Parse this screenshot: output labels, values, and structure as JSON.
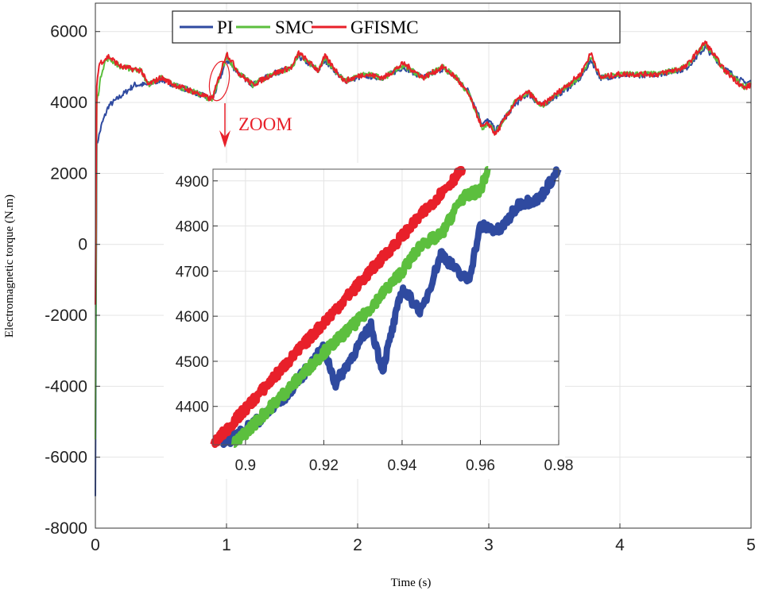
{
  "chart_data": [
    {
      "type": "line",
      "title": "",
      "xlabel": "Time (s)",
      "ylabel": "Electromagnetic torque (N.m)",
      "xlim": [
        0,
        5
      ],
      "ylim": [
        -8000,
        6800
      ],
      "xticks": [
        "0",
        "1",
        "2",
        "3",
        "4",
        "5"
      ],
      "yticks": [
        "6000",
        "4000",
        "2000",
        "0",
        "-2000",
        "-4000",
        "-6000",
        "-8000"
      ],
      "grid": true,
      "legend": {
        "position": "top-center",
        "entries": [
          "PI",
          "SMC",
          "GFISMC"
        ]
      },
      "annotation": "ZOOM",
      "series": [
        {
          "name": "PI",
          "color": "#2f4aa0",
          "points": [
            [
              0,
              -7100
            ],
            [
              0.01,
              2800
            ],
            [
              0.05,
              3400
            ],
            [
              0.1,
              3900
            ],
            [
              0.2,
              4200
            ],
            [
              0.3,
              4500
            ],
            [
              0.4,
              4500
            ],
            [
              0.5,
              4650
            ],
            [
              0.6,
              4500
            ],
            [
              0.75,
              4300
            ],
            [
              0.88,
              4100
            ],
            [
              0.9,
              4150
            ],
            [
              1.0,
              5200
            ],
            [
              1.1,
              4800
            ],
            [
              1.2,
              4500
            ],
            [
              1.35,
              4800
            ],
            [
              1.5,
              5000
            ],
            [
              1.55,
              5300
            ],
            [
              1.7,
              4900
            ],
            [
              1.75,
              5200
            ],
            [
              1.9,
              4600
            ],
            [
              2.05,
              4750
            ],
            [
              2.2,
              4700
            ],
            [
              2.35,
              5000
            ],
            [
              2.5,
              4700
            ],
            [
              2.65,
              4950
            ],
            [
              2.75,
              4700
            ],
            [
              2.85,
              4300
            ],
            [
              2.95,
              3400
            ],
            [
              3.0,
              3500
            ],
            [
              3.05,
              3200
            ],
            [
              3.2,
              3950
            ],
            [
              3.3,
              4250
            ],
            [
              3.4,
              3900
            ],
            [
              3.6,
              4400
            ],
            [
              3.7,
              4700
            ],
            [
              3.78,
              5200
            ],
            [
              3.85,
              4700
            ],
            [
              4.0,
              4750
            ],
            [
              4.3,
              4800
            ],
            [
              4.5,
              4950
            ],
            [
              4.65,
              5550
            ],
            [
              4.8,
              4950
            ],
            [
              4.95,
              4550
            ],
            [
              5,
              4600
            ]
          ]
        },
        {
          "name": "SMC",
          "color": "#5cbf3e",
          "points": [
            [
              0,
              -5500
            ],
            [
              0.01,
              4000
            ],
            [
              0.05,
              4900
            ],
            [
              0.08,
              5200
            ],
            [
              0.1,
              5250
            ],
            [
              0.2,
              5000
            ],
            [
              0.35,
              4900
            ],
            [
              0.4,
              4500
            ],
            [
              0.5,
              4700
            ],
            [
              0.6,
              4500
            ],
            [
              0.75,
              4300
            ],
            [
              0.88,
              4100
            ],
            [
              0.9,
              4150
            ],
            [
              1.0,
              5300
            ],
            [
              1.1,
              4800
            ],
            [
              1.2,
              4500
            ],
            [
              1.35,
              4800
            ],
            [
              1.5,
              5000
            ],
            [
              1.55,
              5350
            ],
            [
              1.7,
              4900
            ],
            [
              1.75,
              5250
            ],
            [
              1.9,
              4600
            ],
            [
              2.05,
              4800
            ],
            [
              2.2,
              4700
            ],
            [
              2.35,
              5050
            ],
            [
              2.5,
              4700
            ],
            [
              2.65,
              5000
            ],
            [
              2.75,
              4700
            ],
            [
              2.85,
              4250
            ],
            [
              2.95,
              3300
            ],
            [
              3.0,
              3400
            ],
            [
              3.05,
              3150
            ],
            [
              3.2,
              4000
            ],
            [
              3.3,
              4300
            ],
            [
              3.4,
              3900
            ],
            [
              3.6,
              4450
            ],
            [
              3.7,
              4750
            ],
            [
              3.78,
              5300
            ],
            [
              3.85,
              4700
            ],
            [
              4.0,
              4800
            ],
            [
              4.3,
              4800
            ],
            [
              4.5,
              5000
            ],
            [
              4.65,
              5650
            ],
            [
              4.8,
              4900
            ],
            [
              4.95,
              4450
            ],
            [
              5,
              4500
            ]
          ]
        },
        {
          "name": "GFISMC",
          "color": "#e8202a",
          "points": [
            [
              0,
              -1700
            ],
            [
              0.01,
              4500
            ],
            [
              0.03,
              5100
            ],
            [
              0.1,
              5300
            ],
            [
              0.2,
              5000
            ],
            [
              0.35,
              4900
            ],
            [
              0.4,
              4500
            ],
            [
              0.5,
              4700
            ],
            [
              0.6,
              4500
            ],
            [
              0.75,
              4300
            ],
            [
              0.88,
              4100
            ],
            [
              0.9,
              4200
            ],
            [
              1.0,
              5400
            ],
            [
              1.1,
              4800
            ],
            [
              1.2,
              4500
            ],
            [
              1.35,
              4800
            ],
            [
              1.5,
              5000
            ],
            [
              1.55,
              5400
            ],
            [
              1.7,
              4900
            ],
            [
              1.75,
              5300
            ],
            [
              1.9,
              4600
            ],
            [
              2.05,
              4800
            ],
            [
              2.2,
              4700
            ],
            [
              2.35,
              5100
            ],
            [
              2.5,
              4700
            ],
            [
              2.65,
              5000
            ],
            [
              2.75,
              4700
            ],
            [
              2.85,
              4200
            ],
            [
              2.95,
              3300
            ],
            [
              3.0,
              3400
            ],
            [
              3.05,
              3100
            ],
            [
              3.2,
              4000
            ],
            [
              3.3,
              4300
            ],
            [
              3.4,
              3900
            ],
            [
              3.6,
              4500
            ],
            [
              3.7,
              4800
            ],
            [
              3.78,
              5400
            ],
            [
              3.85,
              4700
            ],
            [
              4.0,
              4800
            ],
            [
              4.3,
              4800
            ],
            [
              4.5,
              5000
            ],
            [
              4.65,
              5700
            ],
            [
              4.8,
              4900
            ],
            [
              4.95,
              4400
            ],
            [
              5,
              4500
            ]
          ]
        }
      ]
    },
    {
      "type": "line",
      "title": "",
      "xlim": [
        0.8917,
        0.98
      ],
      "ylim": [
        4315,
        4926
      ],
      "xticks": [
        "0.9",
        "0.92",
        "0.94",
        "0.96",
        "0.98"
      ],
      "yticks": [
        "4900",
        "4800",
        "4700",
        "4600",
        "4500",
        "4400"
      ],
      "grid": true,
      "series": [
        {
          "name": "PI",
          "color": "#2f4aa0",
          "points": [
            [
              0.894,
              4315
            ],
            [
              0.905,
              4380
            ],
            [
              0.91,
              4420
            ],
            [
              0.92,
              4530
            ],
            [
              0.923,
              4450
            ],
            [
              0.932,
              4580
            ],
            [
              0.935,
              4480
            ],
            [
              0.94,
              4660
            ],
            [
              0.945,
              4610
            ],
            [
              0.95,
              4740
            ],
            [
              0.955,
              4690
            ],
            [
              0.957,
              4680
            ],
            [
              0.96,
              4800
            ],
            [
              0.965,
              4790
            ],
            [
              0.97,
              4850
            ],
            [
              0.975,
              4860
            ],
            [
              0.98,
              4926
            ]
          ]
        },
        {
          "name": "SMC",
          "color": "#5cbf3e",
          "points": [
            [
              0.897,
              4315
            ],
            [
              0.91,
              4430
            ],
            [
              0.92,
              4520
            ],
            [
              0.93,
              4600
            ],
            [
              0.94,
              4700
            ],
            [
              0.945,
              4760
            ],
            [
              0.95,
              4780
            ],
            [
              0.955,
              4860
            ],
            [
              0.96,
              4880
            ],
            [
              0.962,
              4926
            ]
          ]
        },
        {
          "name": "GFISMC",
          "color": "#e8202a",
          "points": [
            [
              0.8917,
              4315
            ],
            [
              0.9555,
              4926
            ]
          ]
        }
      ]
    }
  ]
}
